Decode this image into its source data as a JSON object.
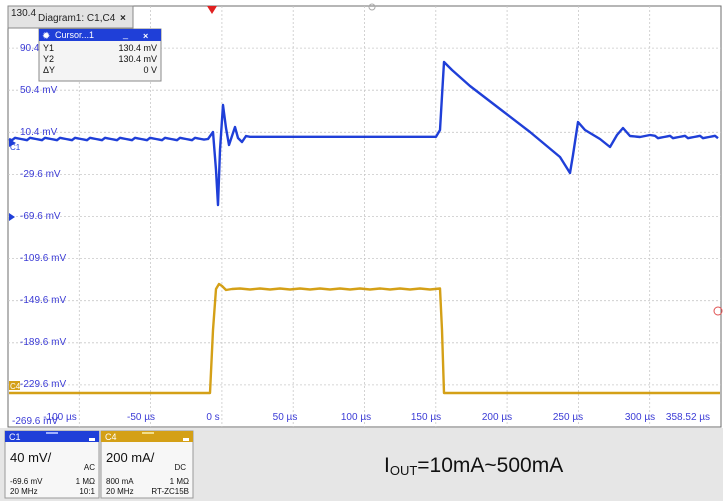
{
  "diagram_tab": {
    "title": "Diagram1: C1,C4",
    "close": "×"
  },
  "corner_value": "130.4",
  "cursor_panel": {
    "title": "Cursor...1",
    "minimize": "_",
    "close": "×",
    "rows": [
      {
        "label": "Y1",
        "value": "130.4 mV"
      },
      {
        "label": "Y2",
        "value": "130.4 mV"
      },
      {
        "label": "ΔY",
        "value": "0 V"
      }
    ]
  },
  "y_axis_labels": [
    "90.4 mV",
    "50.4 mV",
    "10.4 mV",
    "-29.6 mV",
    "-69.6 mV",
    "-109.6 mV",
    "-149.6 mV",
    "-189.6 mV",
    "-229.6 mV",
    "-269.6 mV"
  ],
  "x_axis_labels": [
    "-100 µs",
    "-50 µs",
    "0 s",
    "50 µs",
    "100 µs",
    "150 µs",
    "200 µs",
    "250 µs",
    "300 µs",
    "358.52 µs"
  ],
  "channel_markers": {
    "c1": "C1",
    "c4": "C4"
  },
  "channels": [
    {
      "id": "C1",
      "scale": "40 mV/",
      "coupling": "AC",
      "offset": "-69.6 mV",
      "impedance": "1 MΩ",
      "bandwidth": "20 MHz",
      "probe": "10:1",
      "color": "#1f3fd8",
      "header_color": "#1f3fd8"
    },
    {
      "id": "C4",
      "scale": "200 mA/",
      "coupling": "DC",
      "offset": "800 mA",
      "impedance": "1 MΩ",
      "bandwidth": "20 MHz",
      "probe": "RT-ZC15B",
      "color": "#d4a017",
      "header_color": "#d4a017"
    }
  ],
  "annotation": {
    "base": "I",
    "subscript": "OUT",
    "rest": "=10mA~500mA"
  },
  "colors": {
    "grid": "#c8c8c8",
    "axis_text": "#3b3bd6",
    "trigger": "#e02020",
    "info_bg": "#e6e6e6",
    "cursor_header": "#1f3fd8"
  }
}
